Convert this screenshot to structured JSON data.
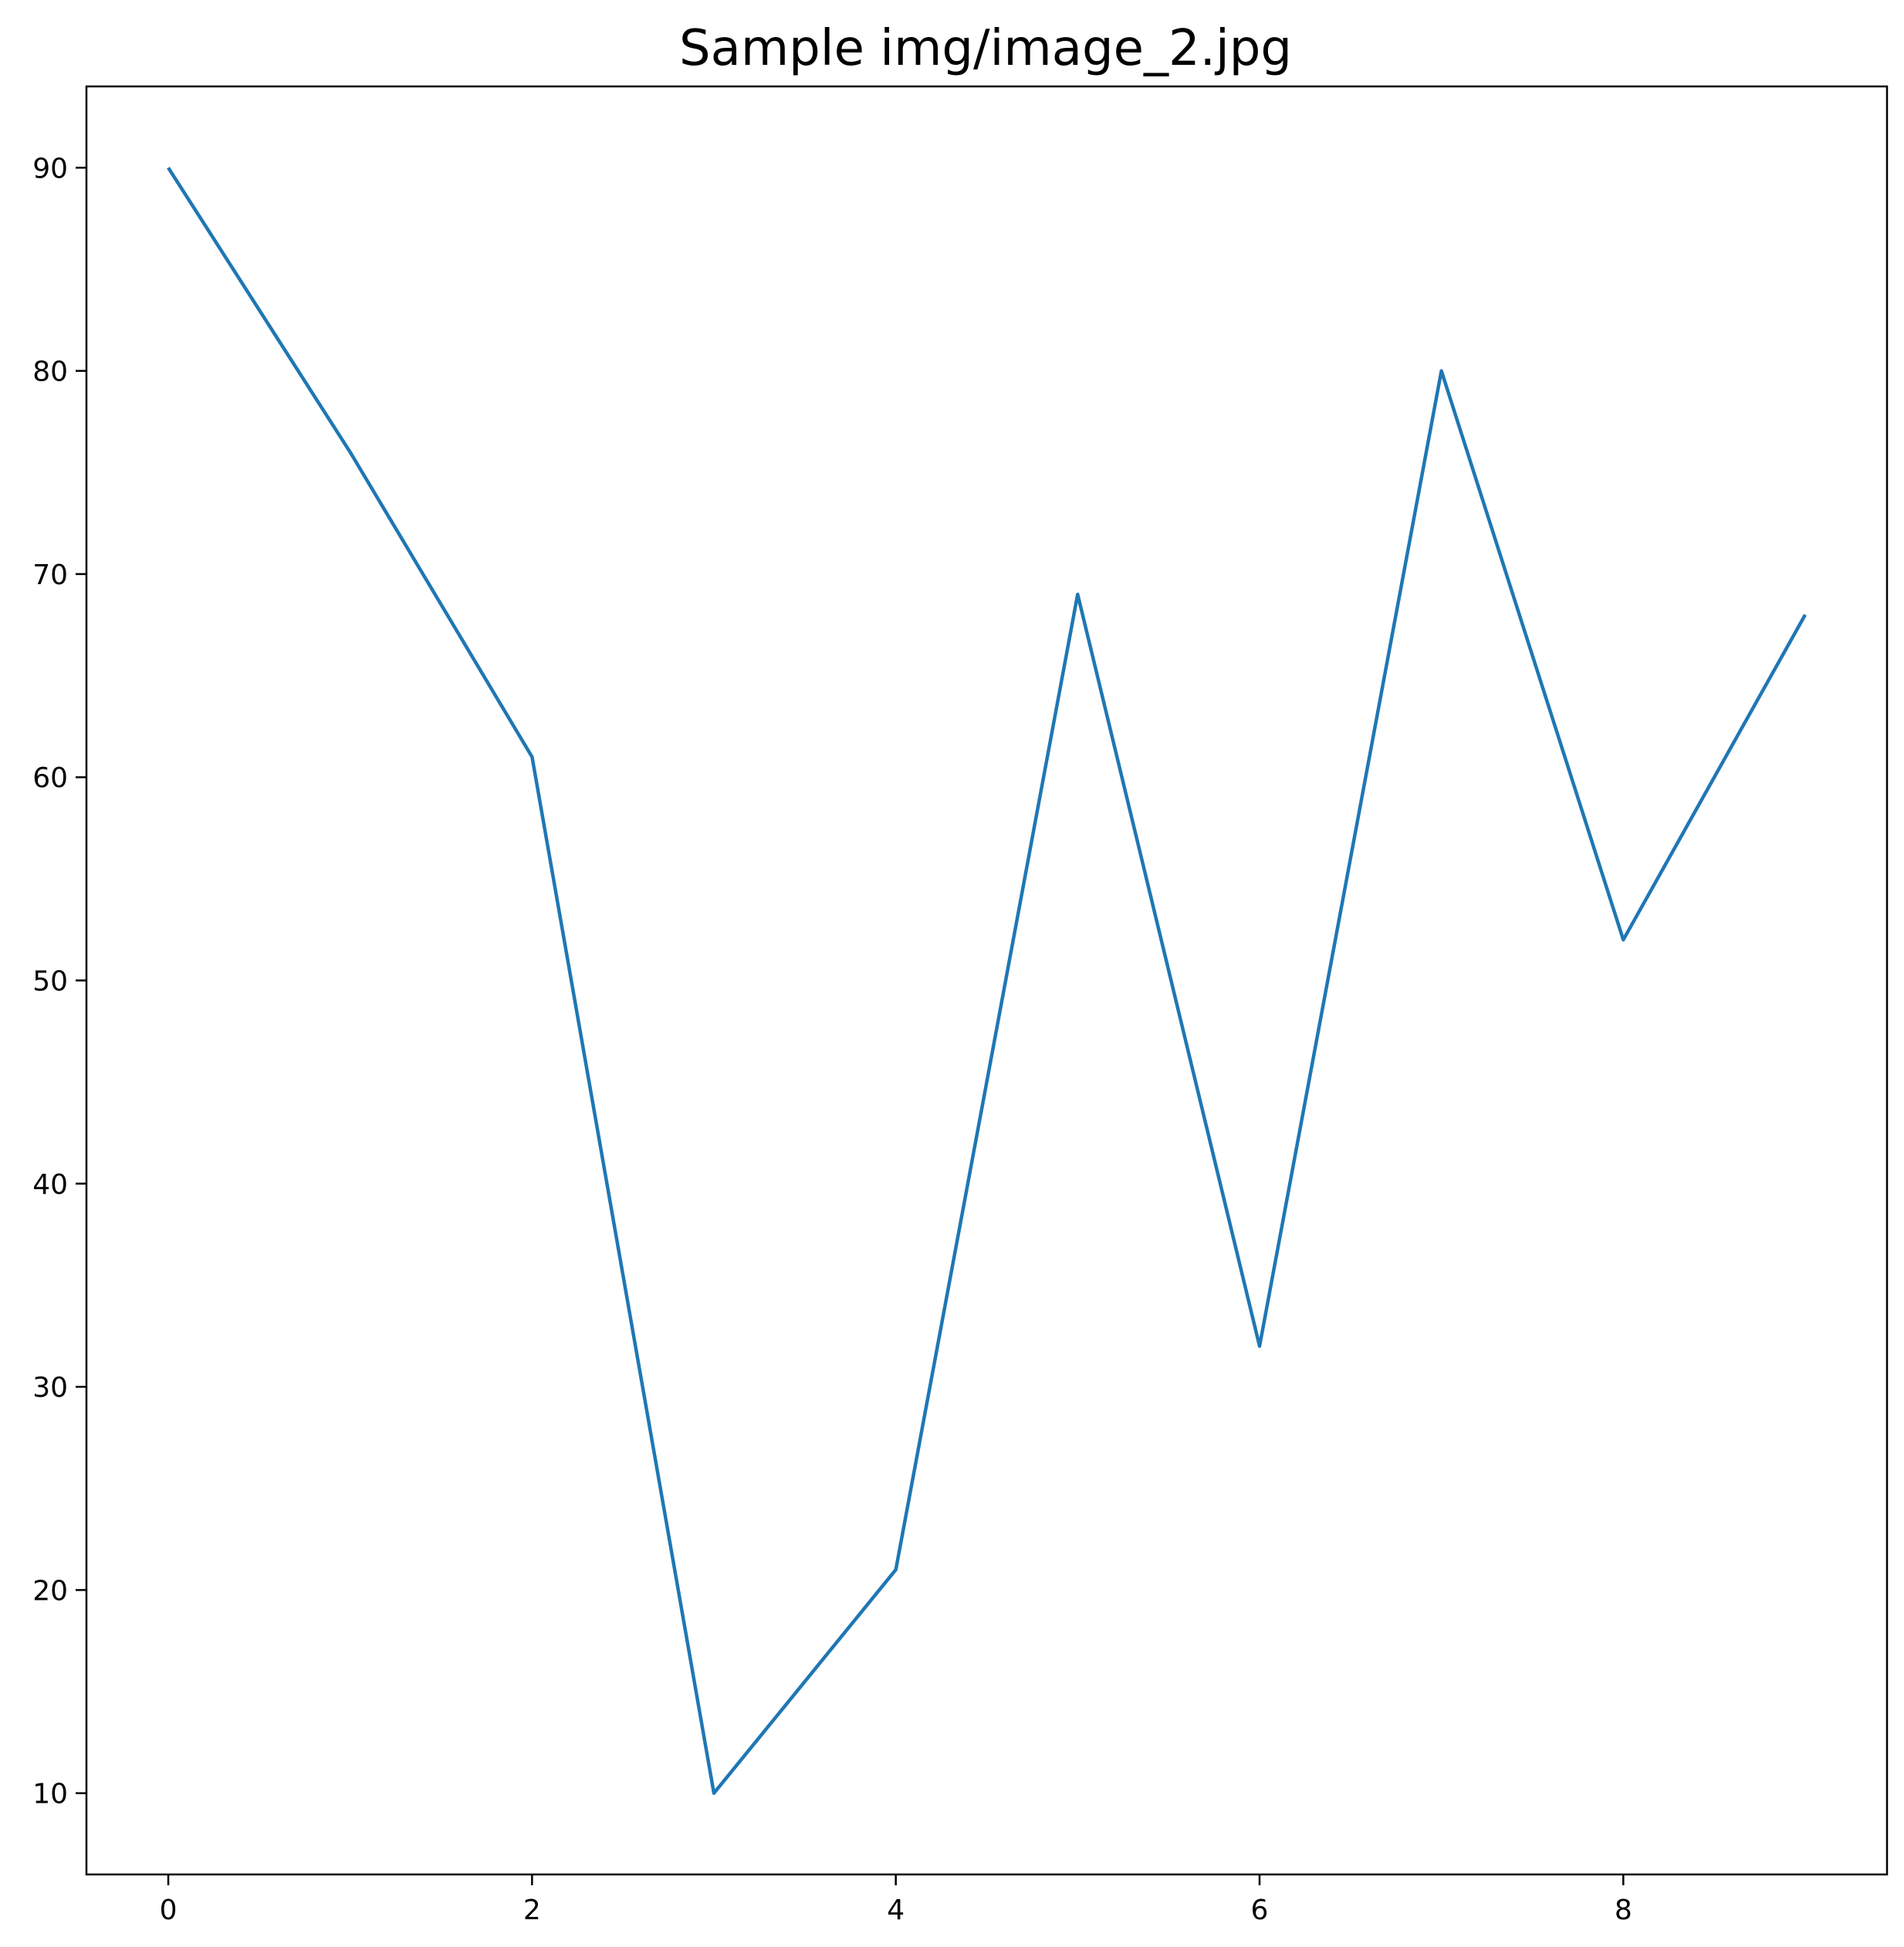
{
  "chart_data": {
    "type": "line",
    "title": "Sample img/image_2.jpg",
    "xlabel": "",
    "ylabel": "",
    "x": [
      0,
      1,
      2,
      3,
      4,
      5,
      6,
      7,
      8,
      9
    ],
    "series": [
      {
        "values": [
          90,
          76,
          61,
          10,
          21,
          69,
          32,
          80,
          52,
          68
        ],
        "color": "#1f77b4"
      }
    ],
    "xlim": [
      -0.45,
      9.45
    ],
    "ylim": [
      6,
      94
    ],
    "xticks": [
      0,
      2,
      4,
      6,
      8
    ],
    "yticks": [
      10,
      20,
      30,
      40,
      50,
      60,
      70,
      80,
      90
    ],
    "grid": false,
    "legend": "none"
  }
}
